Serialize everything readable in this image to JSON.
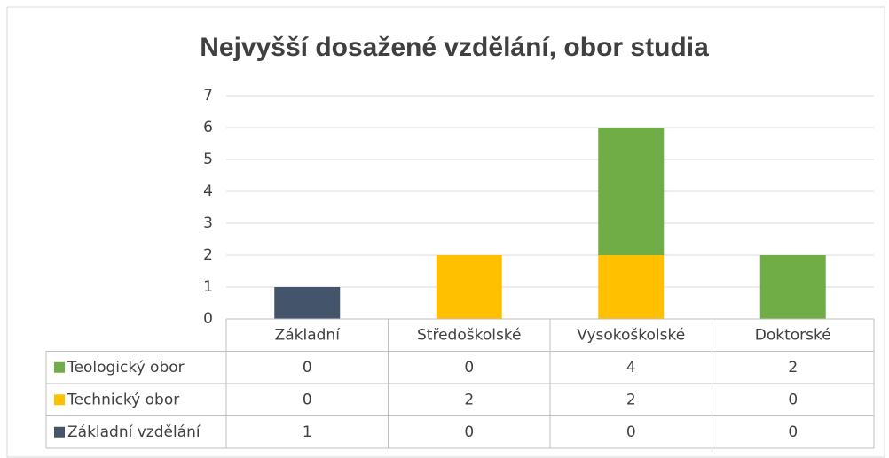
{
  "chart_data": {
    "type": "stacked_bar",
    "title": "Nejvyšší dosažené vzdělání, obor studia",
    "categories": [
      "Základní",
      "Středoškolské",
      "Vysokoškolské",
      "Doktorské"
    ],
    "series": [
      {
        "name": "Základní vzdělání",
        "color": "#44546a",
        "values": [
          1,
          0,
          0,
          0
        ]
      },
      {
        "name": "Technický obor",
        "color": "#ffc000",
        "values": [
          0,
          2,
          2,
          0
        ]
      },
      {
        "name": "Teologický obor",
        "color": "#70ad47",
        "values": [
          0,
          0,
          4,
          2
        ]
      }
    ],
    "ylim": [
      0,
      7
    ],
    "yticks": [
      0,
      1,
      2,
      3,
      4,
      5,
      6,
      7
    ],
    "grid": true,
    "data_table": true
  }
}
